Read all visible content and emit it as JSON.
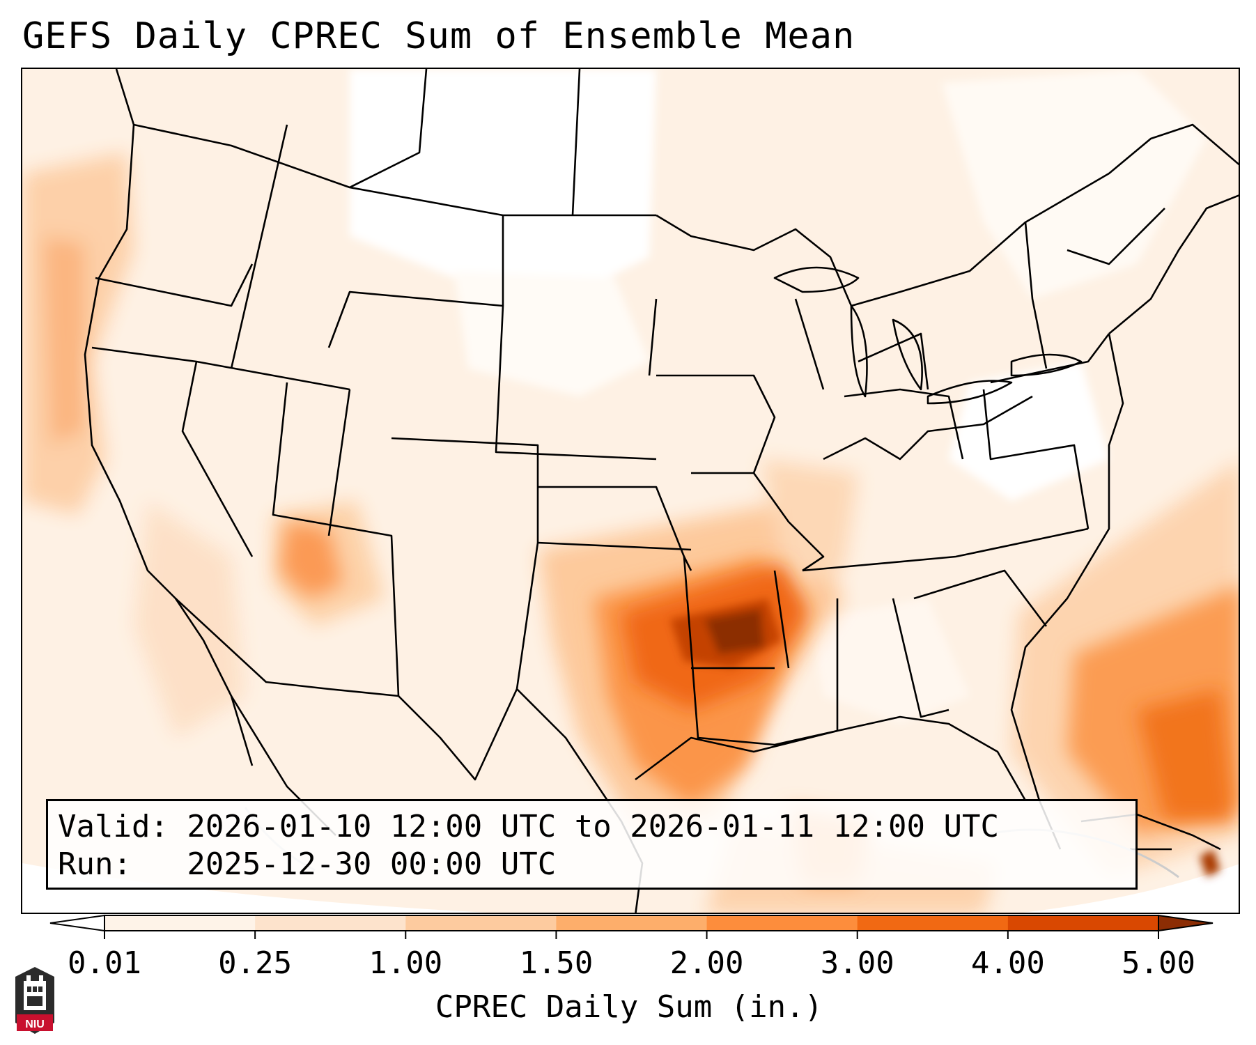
{
  "title": "GEFS Daily CPREC Sum of Ensemble Mean",
  "info": {
    "valid_line": "Valid: 2026-01-10 12:00 UTC to 2026-01-11 12:00 UTC",
    "run_line": "Run:   2025-12-30 00:00 UTC"
  },
  "colorbar": {
    "label": "CPREC Daily Sum (in.)",
    "ticks": [
      "0.01",
      "0.25",
      "1.00",
      "1.50",
      "2.00",
      "3.00",
      "4.00",
      "5.00"
    ],
    "colors": [
      "#fef3e8",
      "#fde3cc",
      "#fdcb9f",
      "#fdae6b",
      "#fd8d3c",
      "#f16913",
      "#d94801",
      "#8c2d04"
    ],
    "extend": "both"
  },
  "logo": {
    "text": "NIU",
    "icon": "university-seal-icon"
  }
}
